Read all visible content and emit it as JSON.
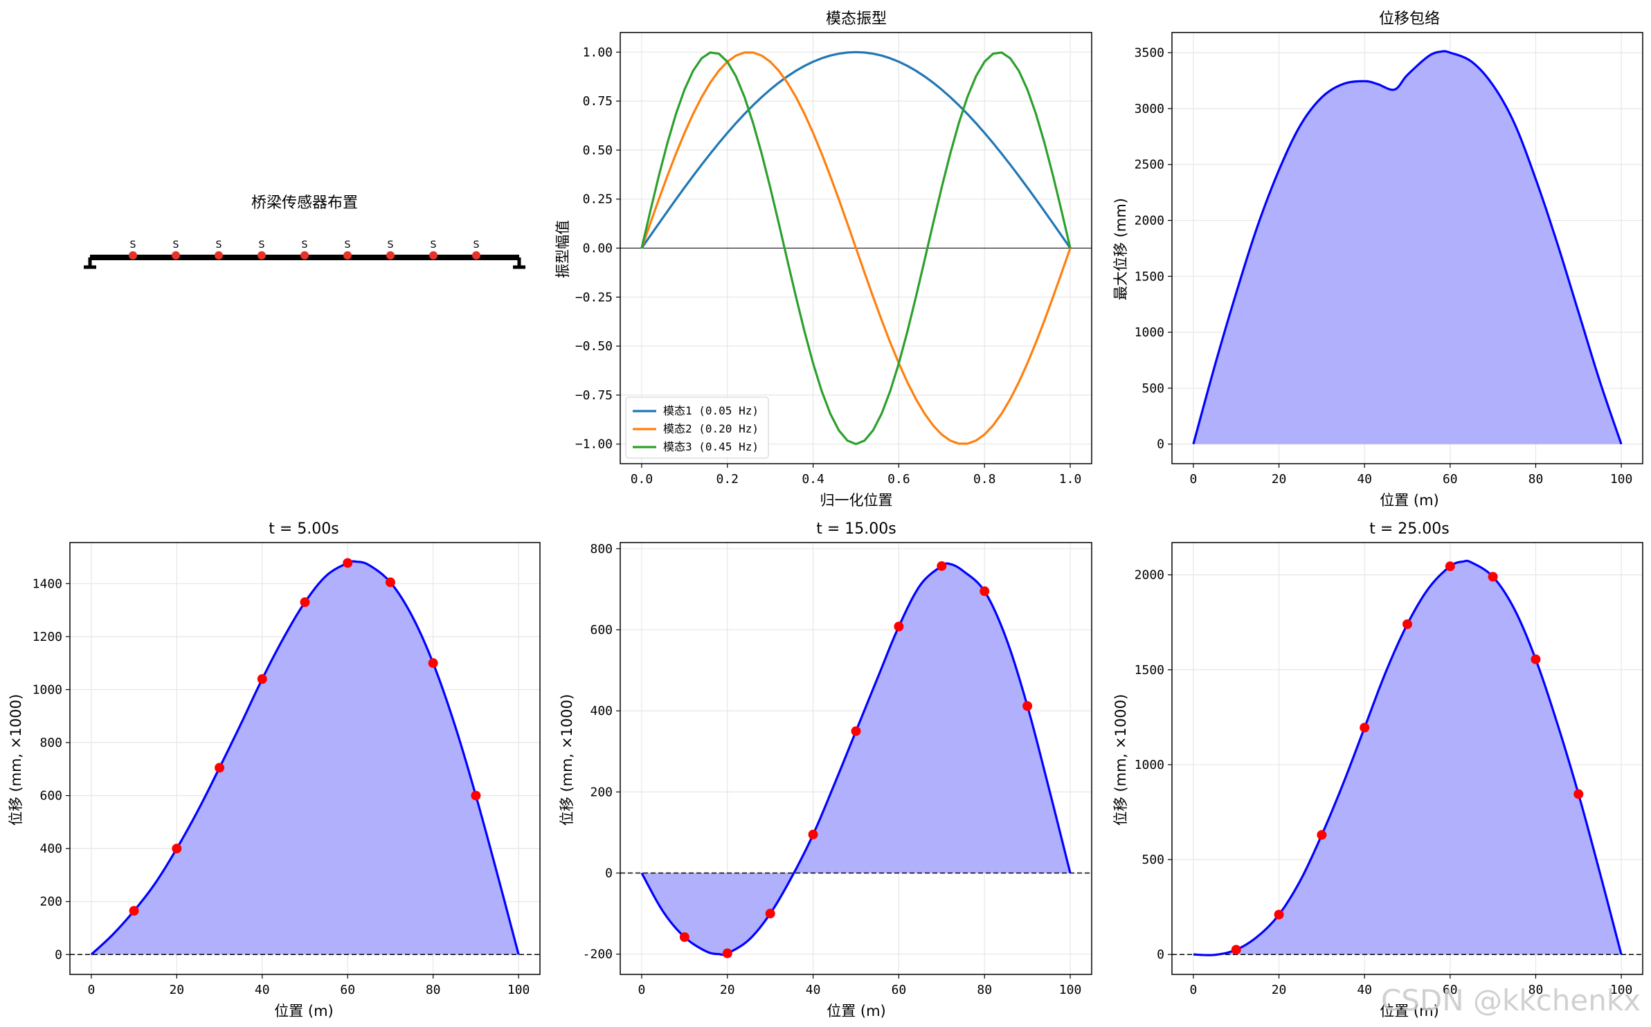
{
  "watermark": "CSDN @kkchenkx",
  "chart_data": [
    {
      "id": "bridge",
      "type": "diagram",
      "title": "桥梁传感器布置",
      "sensor_label": "S",
      "sensor_positions": [
        10,
        20,
        30,
        40,
        50,
        60,
        70,
        80,
        90
      ],
      "span": [
        0,
        100
      ],
      "colors": {
        "deck": "#000000",
        "sensor": "#e8322a"
      }
    },
    {
      "id": "modes",
      "type": "line",
      "title": "模态振型",
      "xlabel": "归一化位置",
      "ylabel": "振型幅值",
      "xlim": [
        -0.05,
        1.05
      ],
      "ylim": [
        -1.1,
        1.1
      ],
      "xticks": [
        0.0,
        0.2,
        0.4,
        0.6,
        0.8,
        1.0
      ],
      "xtick_labels": [
        "0.0",
        "0.2",
        "0.4",
        "0.6",
        "0.8",
        "1.0"
      ],
      "yticks": [
        -1.0,
        -0.75,
        -0.5,
        -0.25,
        0.0,
        0.25,
        0.5,
        0.75,
        1.0
      ],
      "ytick_labels": [
        "−1.00",
        "−0.75",
        "−0.50",
        "−0.25",
        "0.00",
        "0.25",
        "0.50",
        "0.75",
        "1.00"
      ],
      "grid": true,
      "legend": "lower-left",
      "zero_line": true,
      "series": [
        {
          "name": "模态1 (0.05 Hz)",
          "color": "#1f77b4",
          "mode": 1
        },
        {
          "name": "模态2 (0.20 Hz)",
          "color": "#ff7f0e",
          "mode": 2
        },
        {
          "name": "模态3 (0.45 Hz)",
          "color": "#2ca02c",
          "mode": 3
        }
      ]
    },
    {
      "id": "envelope",
      "type": "area",
      "title": "位移包络",
      "xlabel": "位置 (m)",
      "ylabel": "最大位移 (mm)",
      "xlim": [
        -5,
        105
      ],
      "ylim": [
        -175,
        3680
      ],
      "xticks": [
        0,
        20,
        40,
        60,
        80,
        100
      ],
      "yticks": [
        0,
        500,
        1000,
        1500,
        2000,
        2500,
        3000,
        3500
      ],
      "grid": true,
      "line_color": "#0000ff",
      "fill_color": "#b0b0fc",
      "x": [
        0,
        5,
        10,
        15,
        20,
        25,
        30,
        35,
        40,
        43,
        47,
        50,
        55,
        58,
        60,
        65,
        70,
        75,
        80,
        85,
        90,
        95,
        100
      ],
      "y": [
        0,
        700,
        1350,
        1950,
        2450,
        2850,
        3100,
        3220,
        3245,
        3220,
        3170,
        3300,
        3470,
        3510,
        3500,
        3420,
        3210,
        2870,
        2370,
        1800,
        1180,
        560,
        0
      ]
    },
    {
      "id": "t5",
      "type": "area",
      "title": "t = 5.00s",
      "xlabel": "位置 (m)",
      "ylabel": "位移 (mm, ×1000)",
      "xlim": [
        -5,
        105
      ],
      "ylim": [
        -75,
        1555
      ],
      "xticks": [
        0,
        20,
        40,
        60,
        80,
        100
      ],
      "yticks": [
        0,
        200,
        400,
        600,
        800,
        1000,
        1200,
        1400
      ],
      "grid": true,
      "zero_line": true,
      "line_color": "#0000ff",
      "fill_color": "#b0b0fc",
      "point_color": "#ff0000",
      "x": [
        0,
        5,
        10,
        15,
        20,
        25,
        30,
        35,
        40,
        45,
        50,
        55,
        60,
        62,
        65,
        70,
        75,
        80,
        85,
        90,
        95,
        100
      ],
      "y": [
        0,
        75,
        165,
        270,
        400,
        545,
        705,
        870,
        1040,
        1195,
        1330,
        1430,
        1478,
        1483,
        1470,
        1405,
        1280,
        1100,
        870,
        600,
        305,
        0
      ],
      "sensor_x": [
        10,
        20,
        30,
        40,
        50,
        60,
        70,
        80,
        90
      ],
      "sensor_y": [
        165,
        400,
        705,
        1040,
        1330,
        1478,
        1405,
        1100,
        600
      ]
    },
    {
      "id": "t15",
      "type": "area",
      "title": "t = 15.00s",
      "xlabel": "位置 (m)",
      "ylabel": "位移 (mm, ×1000)",
      "xlim": [
        -5,
        105
      ],
      "ylim": [
        -250,
        815
      ],
      "xticks": [
        0,
        20,
        40,
        60,
        80,
        100
      ],
      "yticks": [
        -200,
        0,
        200,
        400,
        600,
        800
      ],
      "grid": true,
      "zero_line": true,
      "line_color": "#0000ff",
      "fill_color": "#b0b0fc",
      "point_color": "#ff0000",
      "x": [
        0,
        5,
        10,
        15,
        18,
        20,
        25,
        30,
        35,
        40,
        45,
        50,
        55,
        60,
        65,
        70,
        72,
        75,
        80,
        85,
        90,
        95,
        100
      ],
      "y": [
        0,
        -95,
        -158,
        -193,
        -200,
        -198,
        -165,
        -100,
        -10,
        95,
        220,
        350,
        480,
        608,
        710,
        757,
        762,
        745,
        695,
        580,
        412,
        210,
        0
      ],
      "sensor_x": [
        10,
        20,
        30,
        40,
        50,
        60,
        70,
        80,
        90
      ],
      "sensor_y": [
        -158,
        -198,
        -100,
        95,
        350,
        608,
        757,
        695,
        412
      ]
    },
    {
      "id": "t25",
      "type": "area",
      "title": "t = 25.00s",
      "xlabel": "位置 (m)",
      "ylabel": "位移 (mm, ×1000)",
      "xlim": [
        -5,
        105
      ],
      "ylim": [
        -105,
        2170
      ],
      "xticks": [
        0,
        20,
        40,
        60,
        80,
        100
      ],
      "yticks": [
        0,
        500,
        1000,
        1500,
        2000
      ],
      "grid": true,
      "zero_line": true,
      "line_color": "#0000ff",
      "fill_color": "#b0b0fc",
      "point_color": "#ff0000",
      "x": [
        0,
        5,
        10,
        15,
        20,
        25,
        30,
        35,
        40,
        45,
        50,
        55,
        60,
        63,
        65,
        70,
        75,
        80,
        85,
        90,
        95,
        100
      ],
      "y": [
        0,
        -2,
        25,
        95,
        210,
        390,
        630,
        900,
        1195,
        1490,
        1740,
        1930,
        2045,
        2070,
        2065,
        1990,
        1820,
        1555,
        1220,
        845,
        430,
        0
      ],
      "sensor_x": [
        10,
        20,
        30,
        40,
        50,
        60,
        70,
        80,
        90
      ],
      "sensor_y": [
        25,
        210,
        630,
        1195,
        1740,
        2045,
        1990,
        1555,
        845
      ]
    }
  ]
}
